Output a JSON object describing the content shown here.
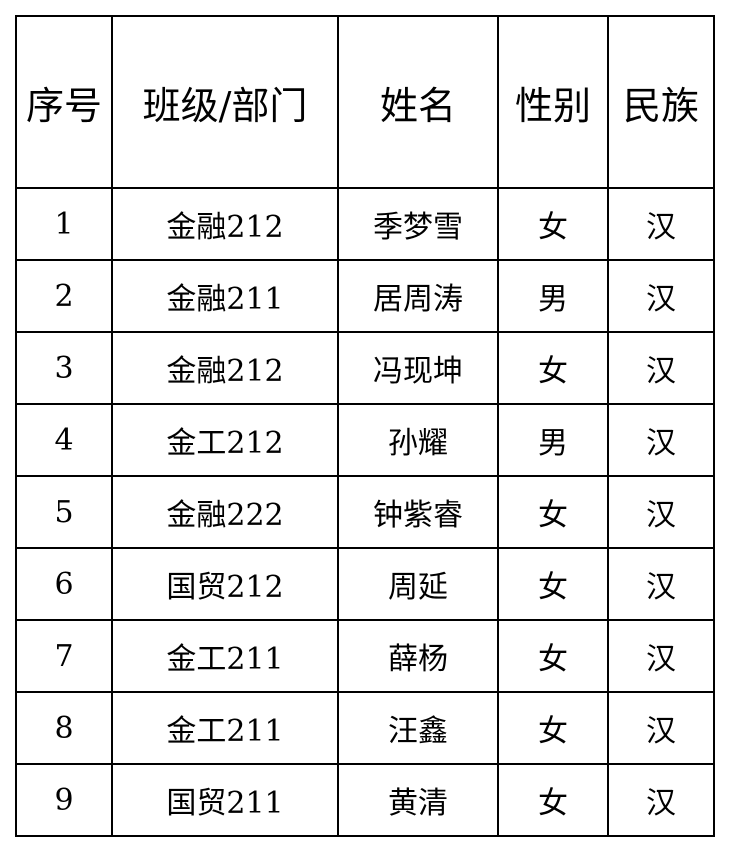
{
  "table": {
    "headers": [
      "序号",
      "班级/部门",
      "姓名",
      "性别",
      "民族"
    ],
    "rows": [
      [
        "1",
        "金融212",
        "季梦雪",
        "女",
        "汉"
      ],
      [
        "2",
        "金融211",
        "居周涛",
        "男",
        "汉"
      ],
      [
        "3",
        "金融212",
        "冯现坤",
        "女",
        "汉"
      ],
      [
        "4",
        "金工212",
        "孙耀",
        "男",
        "汉"
      ],
      [
        "5",
        "金融222",
        "钟紫睿",
        "女",
        "汉"
      ],
      [
        "6",
        "国贸212",
        "周延",
        "女",
        "汉"
      ],
      [
        "7",
        "金工211",
        "薛杨",
        "女",
        "汉"
      ],
      [
        "8",
        "金工211",
        "汪鑫",
        "女",
        "汉"
      ],
      [
        "9",
        "国贸211",
        "黄清",
        "女",
        "汉"
      ]
    ]
  }
}
